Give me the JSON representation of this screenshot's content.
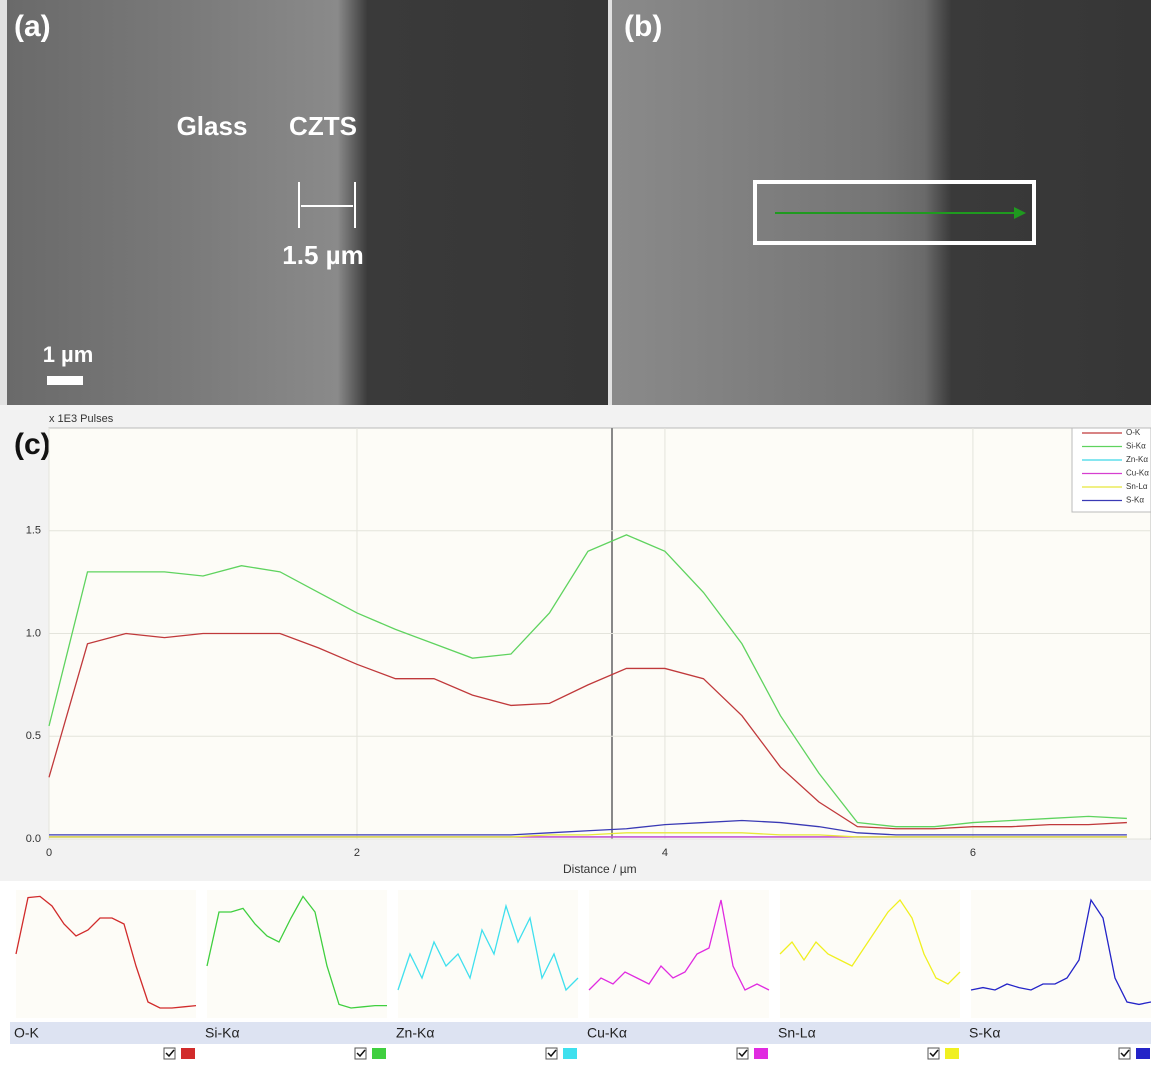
{
  "panels": {
    "a_label": "(a)",
    "glass": "Glass",
    "czts": "CZTS",
    "thickness": "1.5 µm",
    "scale": "1 µm",
    "b_label": "(b)",
    "c_label": "(c)"
  },
  "chart_data": [
    {
      "type": "line",
      "y_unit": "x 1E3 Pulses",
      "x_label": "Distance / µm",
      "x": [
        0,
        0.25,
        0.5,
        0.75,
        1,
        1.25,
        1.5,
        1.75,
        2,
        2.25,
        2.5,
        2.75,
        3,
        3.25,
        3.5,
        3.75,
        4,
        4.25,
        4.5,
        4.75,
        5,
        5.25,
        5.5,
        5.75,
        6,
        6.25,
        6.5,
        6.75,
        7
      ],
      "series": [
        {
          "name": "O-K",
          "color": "#c0393b",
          "values": [
            0.3,
            0.95,
            1.0,
            0.98,
            1.0,
            1.0,
            1.0,
            0.93,
            0.85,
            0.78,
            0.78,
            0.7,
            0.65,
            0.66,
            0.75,
            0.83,
            0.83,
            0.78,
            0.6,
            0.35,
            0.18,
            0.06,
            0.05,
            0.05,
            0.06,
            0.06,
            0.07,
            0.07,
            0.08
          ]
        },
        {
          "name": "Si-Kα",
          "color": "#5fd35f",
          "values": [
            0.55,
            1.3,
            1.3,
            1.3,
            1.28,
            1.33,
            1.3,
            1.2,
            1.1,
            1.02,
            0.95,
            0.88,
            0.9,
            1.1,
            1.4,
            1.48,
            1.4,
            1.2,
            0.95,
            0.6,
            0.32,
            0.08,
            0.06,
            0.06,
            0.08,
            0.09,
            0.1,
            0.11,
            0.1
          ]
        },
        {
          "name": "Zn-Kα",
          "color": "#3fd7e6",
          "values": [
            0.01,
            0.01,
            0.01,
            0.01,
            0.01,
            0.01,
            0.01,
            0.01,
            0.01,
            0.01,
            0.01,
            0.01,
            0.01,
            0.01,
            0.01,
            0.01,
            0.01,
            0.01,
            0.01,
            0.01,
            0.01,
            0.01,
            0.01,
            0.01,
            0.01,
            0.01,
            0.01,
            0.01,
            0.01
          ]
        },
        {
          "name": "Cu-Kα",
          "color": "#d63fd0",
          "values": [
            0.01,
            0.01,
            0.01,
            0.01,
            0.01,
            0.01,
            0.01,
            0.01,
            0.01,
            0.01,
            0.01,
            0.01,
            0.01,
            0.01,
            0.01,
            0.01,
            0.01,
            0.01,
            0.01,
            0.01,
            0.01,
            0.01,
            0.01,
            0.01,
            0.01,
            0.01,
            0.01,
            0.01,
            0.01
          ]
        },
        {
          "name": "Sn-Lα",
          "color": "#e8e83a",
          "values": [
            0.01,
            0.01,
            0.01,
            0.01,
            0.01,
            0.01,
            0.01,
            0.01,
            0.01,
            0.01,
            0.01,
            0.01,
            0.01,
            0.02,
            0.02,
            0.03,
            0.03,
            0.03,
            0.03,
            0.02,
            0.02,
            0.01,
            0.01,
            0.01,
            0.01,
            0.01,
            0.01,
            0.01,
            0.01
          ]
        },
        {
          "name": "S-Kα",
          "color": "#3a3ab5",
          "values": [
            0.02,
            0.02,
            0.02,
            0.02,
            0.02,
            0.02,
            0.02,
            0.02,
            0.02,
            0.02,
            0.02,
            0.02,
            0.02,
            0.03,
            0.04,
            0.05,
            0.07,
            0.08,
            0.09,
            0.08,
            0.06,
            0.03,
            0.02,
            0.02,
            0.02,
            0.02,
            0.02,
            0.02,
            0.02
          ]
        }
      ],
      "xlim": [
        0,
        7.15
      ],
      "ylim": [
        0,
        2.0
      ],
      "xticks": [
        0,
        2,
        4,
        6
      ],
      "yticks": [
        {
          "value": 0,
          "label": "0.0"
        },
        0.5,
        {
          "value": 1,
          "label": "1.0"
        },
        1.5
      ],
      "grid": true
    },
    {
      "type": "line",
      "title": "O-K",
      "color": "#d12b2b",
      "ylim": [
        0,
        1
      ],
      "values": [
        0.5,
        0.97,
        0.98,
        0.9,
        0.75,
        0.65,
        0.7,
        0.8,
        0.8,
        0.75,
        0.4,
        0.1,
        0.05,
        0.05,
        0.06,
        0.07
      ]
    },
    {
      "type": "line",
      "title": "Si-Kα",
      "color": "#3fcf3f",
      "ylim": [
        0,
        1
      ],
      "values": [
        0.4,
        0.85,
        0.85,
        0.88,
        0.75,
        0.65,
        0.6,
        0.8,
        0.98,
        0.85,
        0.4,
        0.08,
        0.05,
        0.06,
        0.07,
        0.07
      ]
    },
    {
      "type": "line",
      "title": "Zn-Kα",
      "color": "#3fe0ee",
      "ylim": [
        0,
        1
      ],
      "values": [
        0.2,
        0.5,
        0.3,
        0.6,
        0.4,
        0.5,
        0.3,
        0.7,
        0.5,
        0.9,
        0.6,
        0.8,
        0.3,
        0.5,
        0.2,
        0.3
      ]
    },
    {
      "type": "line",
      "title": "Cu-Kα",
      "color": "#e02be0",
      "ylim": [
        0,
        1
      ],
      "values": [
        0.2,
        0.3,
        0.25,
        0.35,
        0.3,
        0.25,
        0.4,
        0.3,
        0.35,
        0.5,
        0.55,
        0.95,
        0.4,
        0.2,
        0.25,
        0.2
      ]
    },
    {
      "type": "line",
      "title": "Sn-Lα",
      "color": "#f0f020",
      "ylim": [
        0,
        1
      ],
      "values": [
        0.5,
        0.6,
        0.45,
        0.6,
        0.5,
        0.45,
        0.4,
        0.55,
        0.7,
        0.85,
        0.95,
        0.8,
        0.5,
        0.3,
        0.25,
        0.35
      ]
    },
    {
      "type": "line",
      "title": "S-Kα",
      "color": "#2424c8",
      "ylim": [
        0,
        1
      ],
      "values": [
        0.2,
        0.22,
        0.2,
        0.25,
        0.22,
        0.2,
        0.25,
        0.25,
        0.3,
        0.45,
        0.95,
        0.8,
        0.3,
        0.1,
        0.08,
        0.1
      ]
    }
  ]
}
